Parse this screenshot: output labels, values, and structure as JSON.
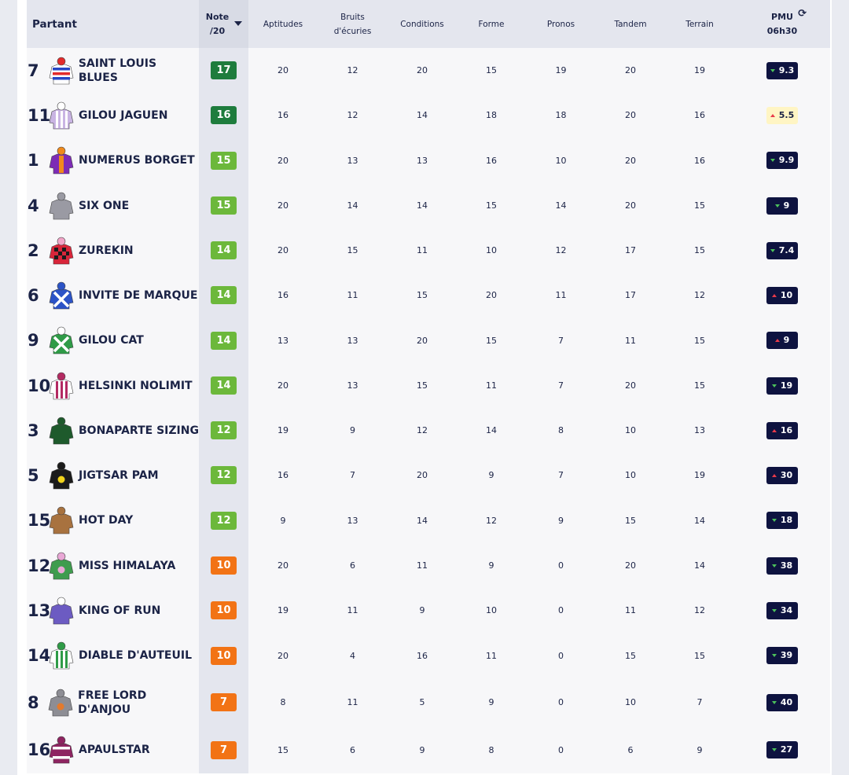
{
  "header": {
    "partant": "Partant",
    "note_line1": "Note",
    "note_line2": "/20",
    "aptitudes": "Aptitudes",
    "bruits_line1": "Bruits",
    "bruits_line2": "d'écuries",
    "conditions": "Conditions",
    "forme": "Forme",
    "pronos": "Pronos",
    "tandem": "Tandem",
    "terrain": "Terrain",
    "pmu_line1": "PMU",
    "pmu_line2": "06h30",
    "refresh_icon": "refresh-icon"
  },
  "colors": {
    "note_dark_green": "#1e7c3d",
    "note_light_green": "#6cb83b",
    "note_orange": "#f27315",
    "pmu_badge": "#0e1340",
    "pmu_badge_highlight": "#fff5c4",
    "trend_down": "#4cc15b",
    "trend_up": "#e93a4a"
  },
  "rows": [
    {
      "num": "7",
      "name": "SAINT LOUIS BLUES",
      "note": "17",
      "grade": "dark",
      "aptitudes": "20",
      "bruits": "12",
      "conditions": "20",
      "forme": "15",
      "pronos": "19",
      "tandem": "20",
      "terrain": "19",
      "pmu": "9.3",
      "trend": "down",
      "highlight": false,
      "silk": {
        "body": "#ffffff",
        "stripe": "#2746c4",
        "stripe2": "#e32b2b",
        "pattern": "hoops",
        "cap": "#e32b2b"
      }
    },
    {
      "num": "11",
      "name": "GILOU JAGUEN",
      "note": "16",
      "grade": "dark",
      "aptitudes": "16",
      "bruits": "12",
      "conditions": "14",
      "forme": "18",
      "pronos": "18",
      "tandem": "20",
      "terrain": "16",
      "pmu": "5.5",
      "trend": "up",
      "highlight": true,
      "silk": {
        "body": "#c9b4e3",
        "stripe": "#ffffff",
        "stripe2": "#c9b4e3",
        "pattern": "stripes",
        "cap": "#ffffff"
      }
    },
    {
      "num": "1",
      "name": "NUMERUS BORGET",
      "note": "15",
      "grade": "light",
      "aptitudes": "20",
      "bruits": "13",
      "conditions": "13",
      "forme": "16",
      "pronos": "10",
      "tandem": "20",
      "terrain": "16",
      "pmu": "9.9",
      "trend": "down",
      "highlight": false,
      "silk": {
        "body": "#7d2bb5",
        "stripe": "#f08a1c",
        "stripe2": "#7d2bb5",
        "pattern": "band",
        "cap": "#f08a1c"
      }
    },
    {
      "num": "4",
      "name": "SIX ONE",
      "note": "15",
      "grade": "light",
      "aptitudes": "20",
      "bruits": "14",
      "conditions": "14",
      "forme": "15",
      "pronos": "14",
      "tandem": "20",
      "terrain": "15",
      "pmu": "9",
      "trend": "down",
      "highlight": false,
      "silk": {
        "body": "#9a9aa3",
        "stripe": "#3c4a8c",
        "stripe2": "#9a9aa3",
        "pattern": "plain",
        "cap": "#9a9aa3"
      }
    },
    {
      "num": "2",
      "name": "ZUREKIN",
      "note": "14",
      "grade": "light",
      "aptitudes": "20",
      "bruits": "15",
      "conditions": "11",
      "forme": "10",
      "pronos": "12",
      "tandem": "17",
      "terrain": "15",
      "pmu": "7.4",
      "trend": "down",
      "highlight": false,
      "silk": {
        "body": "#d8253a",
        "stripe": "#1b1b1b",
        "stripe2": "#f2a5c8",
        "pattern": "checks",
        "cap": "#f2a5c8"
      }
    },
    {
      "num": "6",
      "name": "INVITE DE MARQUE",
      "note": "14",
      "grade": "light",
      "aptitudes": "16",
      "bruits": "11",
      "conditions": "15",
      "forme": "20",
      "pronos": "11",
      "tandem": "17",
      "terrain": "12",
      "pmu": "10",
      "trend": "up",
      "highlight": false,
      "silk": {
        "body": "#2b53c7",
        "stripe": "#ffffff",
        "stripe2": "#2b53c7",
        "pattern": "cross",
        "cap": "#2b53c7"
      }
    },
    {
      "num": "9",
      "name": "GILOU CAT",
      "note": "14",
      "grade": "light",
      "aptitudes": "13",
      "bruits": "13",
      "conditions": "20",
      "forme": "15",
      "pronos": "7",
      "tandem": "11",
      "terrain": "15",
      "pmu": "9",
      "trend": "up",
      "highlight": false,
      "silk": {
        "body": "#2f9b47",
        "stripe": "#ffffff",
        "stripe2": "#2f9b47",
        "pattern": "cross",
        "cap": "#ffffff"
      }
    },
    {
      "num": "10",
      "name": "HELSINKI NOLIMIT",
      "note": "14",
      "grade": "light",
      "aptitudes": "20",
      "bruits": "13",
      "conditions": "15",
      "forme": "11",
      "pronos": "7",
      "tandem": "20",
      "terrain": "15",
      "pmu": "19",
      "trend": "down",
      "highlight": false,
      "silk": {
        "body": "#ffffff",
        "stripe": "#b32a62",
        "stripe2": "#ffffff",
        "pattern": "stripes",
        "cap": "#b32a62"
      }
    },
    {
      "num": "3",
      "name": "BONAPARTE SIZING",
      "note": "12",
      "grade": "light",
      "aptitudes": "19",
      "bruits": "9",
      "conditions": "12",
      "forme": "14",
      "pronos": "8",
      "tandem": "10",
      "terrain": "13",
      "pmu": "16",
      "trend": "up",
      "highlight": false,
      "silk": {
        "body": "#1e5a2c",
        "stripe": "#1e5a2c",
        "stripe2": "#1e5a2c",
        "pattern": "plain",
        "cap": "#1e5a2c"
      }
    },
    {
      "num": "5",
      "name": "JIGTSAR PAM",
      "note": "12",
      "grade": "light",
      "aptitudes": "16",
      "bruits": "7",
      "conditions": "20",
      "forme": "9",
      "pronos": "7",
      "tandem": "10",
      "terrain": "19",
      "pmu": "30",
      "trend": "up",
      "highlight": false,
      "silk": {
        "body": "#1b1b1b",
        "stripe": "#f1d31c",
        "stripe2": "#1b1b1b",
        "pattern": "dot",
        "cap": "#1b1b1b"
      }
    },
    {
      "num": "15",
      "name": "HOT DAY",
      "note": "12",
      "grade": "light",
      "aptitudes": "9",
      "bruits": "13",
      "conditions": "14",
      "forme": "12",
      "pronos": "9",
      "tandem": "15",
      "terrain": "14",
      "pmu": "18",
      "trend": "down",
      "highlight": false,
      "silk": {
        "body": "#a8723f",
        "stripe": "#e0b58a",
        "stripe2": "#a8723f",
        "pattern": "plain",
        "cap": "#a8723f"
      }
    },
    {
      "num": "12",
      "name": "MISS HIMALAYA",
      "note": "10",
      "grade": "orange",
      "aptitudes": "20",
      "bruits": "6",
      "conditions": "11",
      "forme": "9",
      "pronos": "0",
      "tandem": "20",
      "terrain": "14",
      "pmu": "38",
      "trend": "down",
      "highlight": false,
      "silk": {
        "body": "#3f9c4e",
        "stripe": "#e9a8d6",
        "stripe2": "#3f9c4e",
        "pattern": "dot",
        "cap": "#e9a8d6"
      }
    },
    {
      "num": "13",
      "name": "KING OF RUN",
      "note": "10",
      "grade": "orange",
      "aptitudes": "19",
      "bruits": "11",
      "conditions": "9",
      "forme": "10",
      "pronos": "0",
      "tandem": "11",
      "terrain": "12",
      "pmu": "34",
      "trend": "down",
      "highlight": false,
      "silk": {
        "body": "#6c5bc2",
        "stripe": "#ffffff",
        "stripe2": "#6c5bc2",
        "pattern": "plain",
        "cap": "#ffffff"
      }
    },
    {
      "num": "14",
      "name": "DIABLE D'AUTEUIL",
      "note": "10",
      "grade": "orange",
      "aptitudes": "20",
      "bruits": "4",
      "conditions": "16",
      "forme": "11",
      "pronos": "0",
      "tandem": "15",
      "terrain": "15",
      "pmu": "39",
      "trend": "down",
      "highlight": false,
      "silk": {
        "body": "#ffffff",
        "stripe": "#2f9b47",
        "stripe2": "#ffffff",
        "pattern": "stripes",
        "cap": "#2f9b47"
      }
    },
    {
      "num": "8",
      "name": "FREE LORD D'ANJOU",
      "note": "7",
      "grade": "orange",
      "aptitudes": "8",
      "bruits": "11",
      "conditions": "5",
      "forme": "9",
      "pronos": "0",
      "tandem": "10",
      "terrain": "7",
      "pmu": "40",
      "trend": "down",
      "highlight": false,
      "silk": {
        "body": "#8d8d94",
        "stripe": "#e37a2d",
        "stripe2": "#8d8d94",
        "pattern": "dot",
        "cap": "#8d8d94"
      }
    },
    {
      "num": "16",
      "name": "APAULSTAR",
      "note": "7",
      "grade": "orange",
      "aptitudes": "15",
      "bruits": "6",
      "conditions": "9",
      "forme": "8",
      "pronos": "0",
      "tandem": "6",
      "terrain": "9",
      "pmu": "27",
      "trend": "down",
      "highlight": false,
      "silk": {
        "body": "#8e2461",
        "stripe": "#ffffff",
        "stripe2": "#8e2461",
        "pattern": "hoops",
        "cap": "#8e2461"
      }
    }
  ]
}
